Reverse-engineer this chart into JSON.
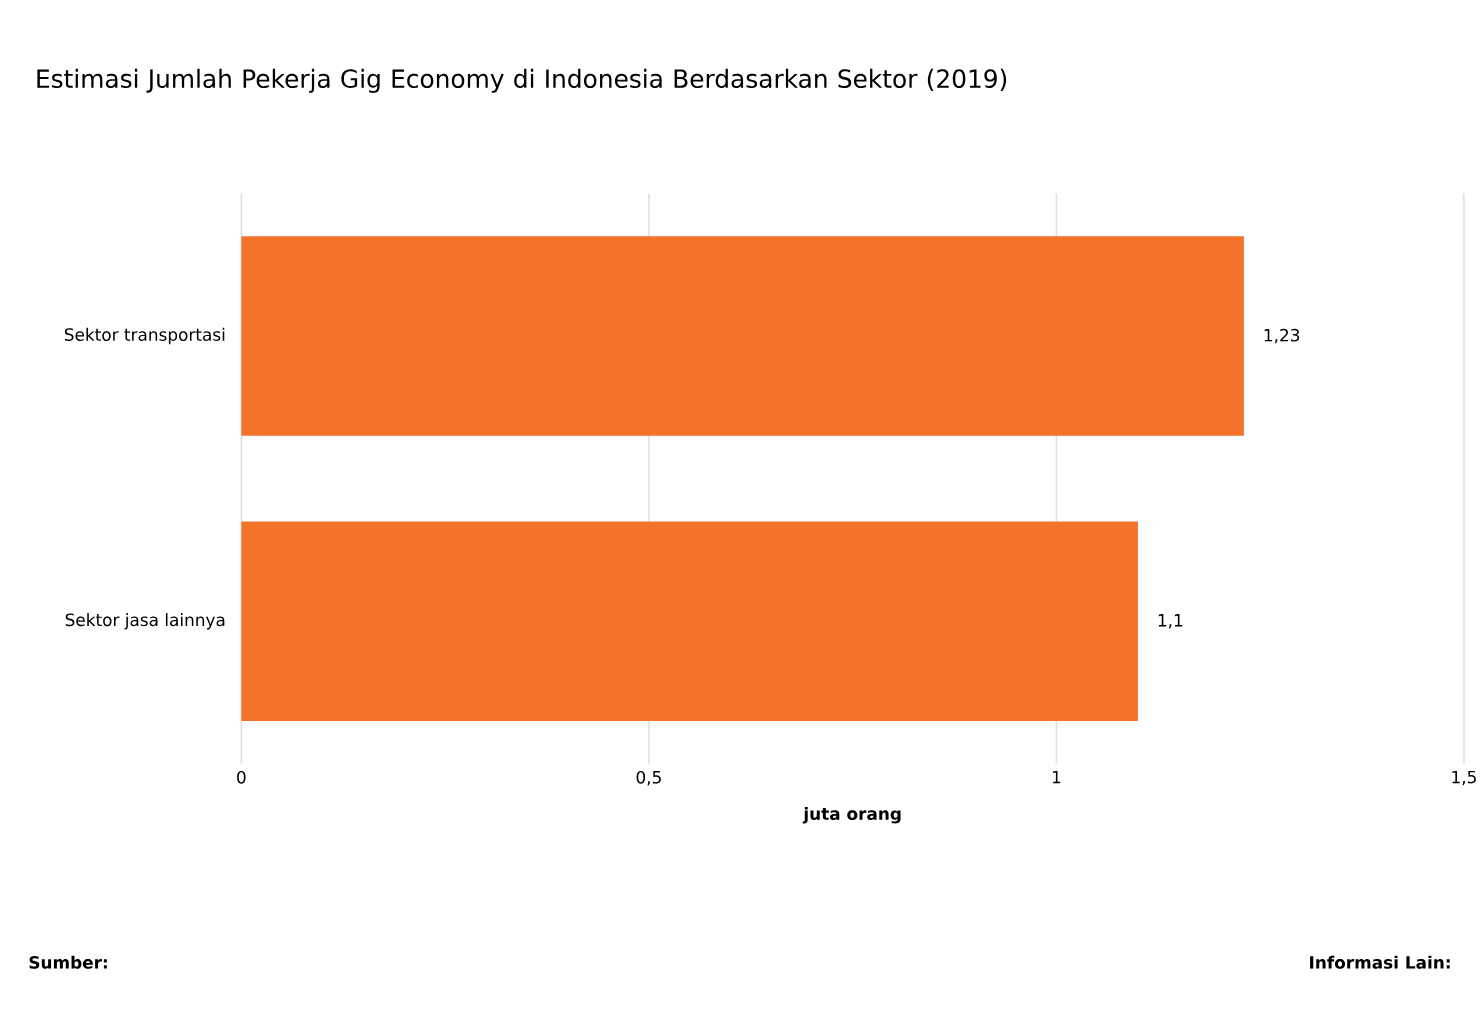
{
  "chart_data": {
    "type": "bar",
    "orientation": "horizontal",
    "title": "Estimasi Jumlah Pekerja Gig Economy di Indonesia Berdasarkan Sektor (2019)",
    "xlabel": "juta orang",
    "categories": [
      "Sektor transportasi",
      "Sektor jasa lainnya"
    ],
    "values": [
      1.23,
      1.1
    ],
    "value_labels": [
      "1,23",
      "1,1"
    ],
    "color": "#f37329",
    "xlim": [
      0,
      1.5
    ],
    "xticks": [
      0,
      {
        "value": 0.5,
        "label": "0,5"
      },
      1,
      {
        "value": 1.5,
        "label": "1,5"
      }
    ],
    "grid": "x",
    "annotations": [
      "Sumber:",
      "Informasi Lain:"
    ]
  }
}
